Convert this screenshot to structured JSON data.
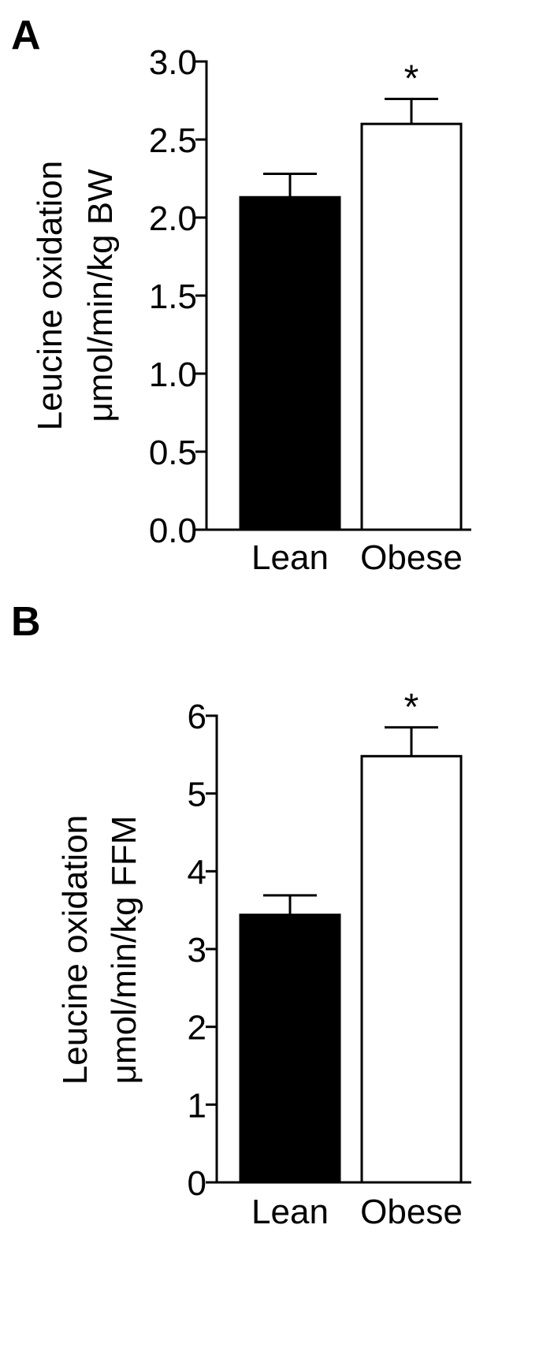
{
  "chart_data": [
    {
      "type": "bar",
      "panel_label": "A",
      "categories": [
        "Lean",
        "Obese"
      ],
      "values": [
        2.13,
        2.6
      ],
      "errors": [
        0.15,
        0.16
      ],
      "bar_colors": [
        "#000000",
        "#ffffff"
      ],
      "significance": [
        "",
        "*"
      ],
      "ylabel_line1": "Leucine oxidation",
      "ylabel_line2": "μmol/min/kg BW",
      "ylim": [
        0,
        3.0
      ],
      "yticks": [
        "0.0",
        "0.5",
        "1.0",
        "1.5",
        "2.0",
        "2.5",
        "3.0"
      ],
      "ytick_values": [
        0,
        0.5,
        1.0,
        1.5,
        2.0,
        2.5,
        3.0
      ],
      "grid": false,
      "legend": "none"
    },
    {
      "type": "bar",
      "panel_label": "B",
      "categories": [
        "Lean",
        "Obese"
      ],
      "values": [
        3.44,
        5.48
      ],
      "errors": [
        0.25,
        0.37
      ],
      "bar_colors": [
        "#000000",
        "#ffffff"
      ],
      "significance": [
        "",
        "*"
      ],
      "ylabel_line1": "Leucine oxidation",
      "ylabel_line2": "μmol/min/kg FFM",
      "ylim": [
        0,
        6
      ],
      "yticks": [
        "0",
        "1",
        "2",
        "3",
        "4",
        "5",
        "6"
      ],
      "ytick_values": [
        0,
        1,
        2,
        3,
        4,
        5,
        6
      ],
      "grid": false,
      "legend": "none"
    }
  ]
}
